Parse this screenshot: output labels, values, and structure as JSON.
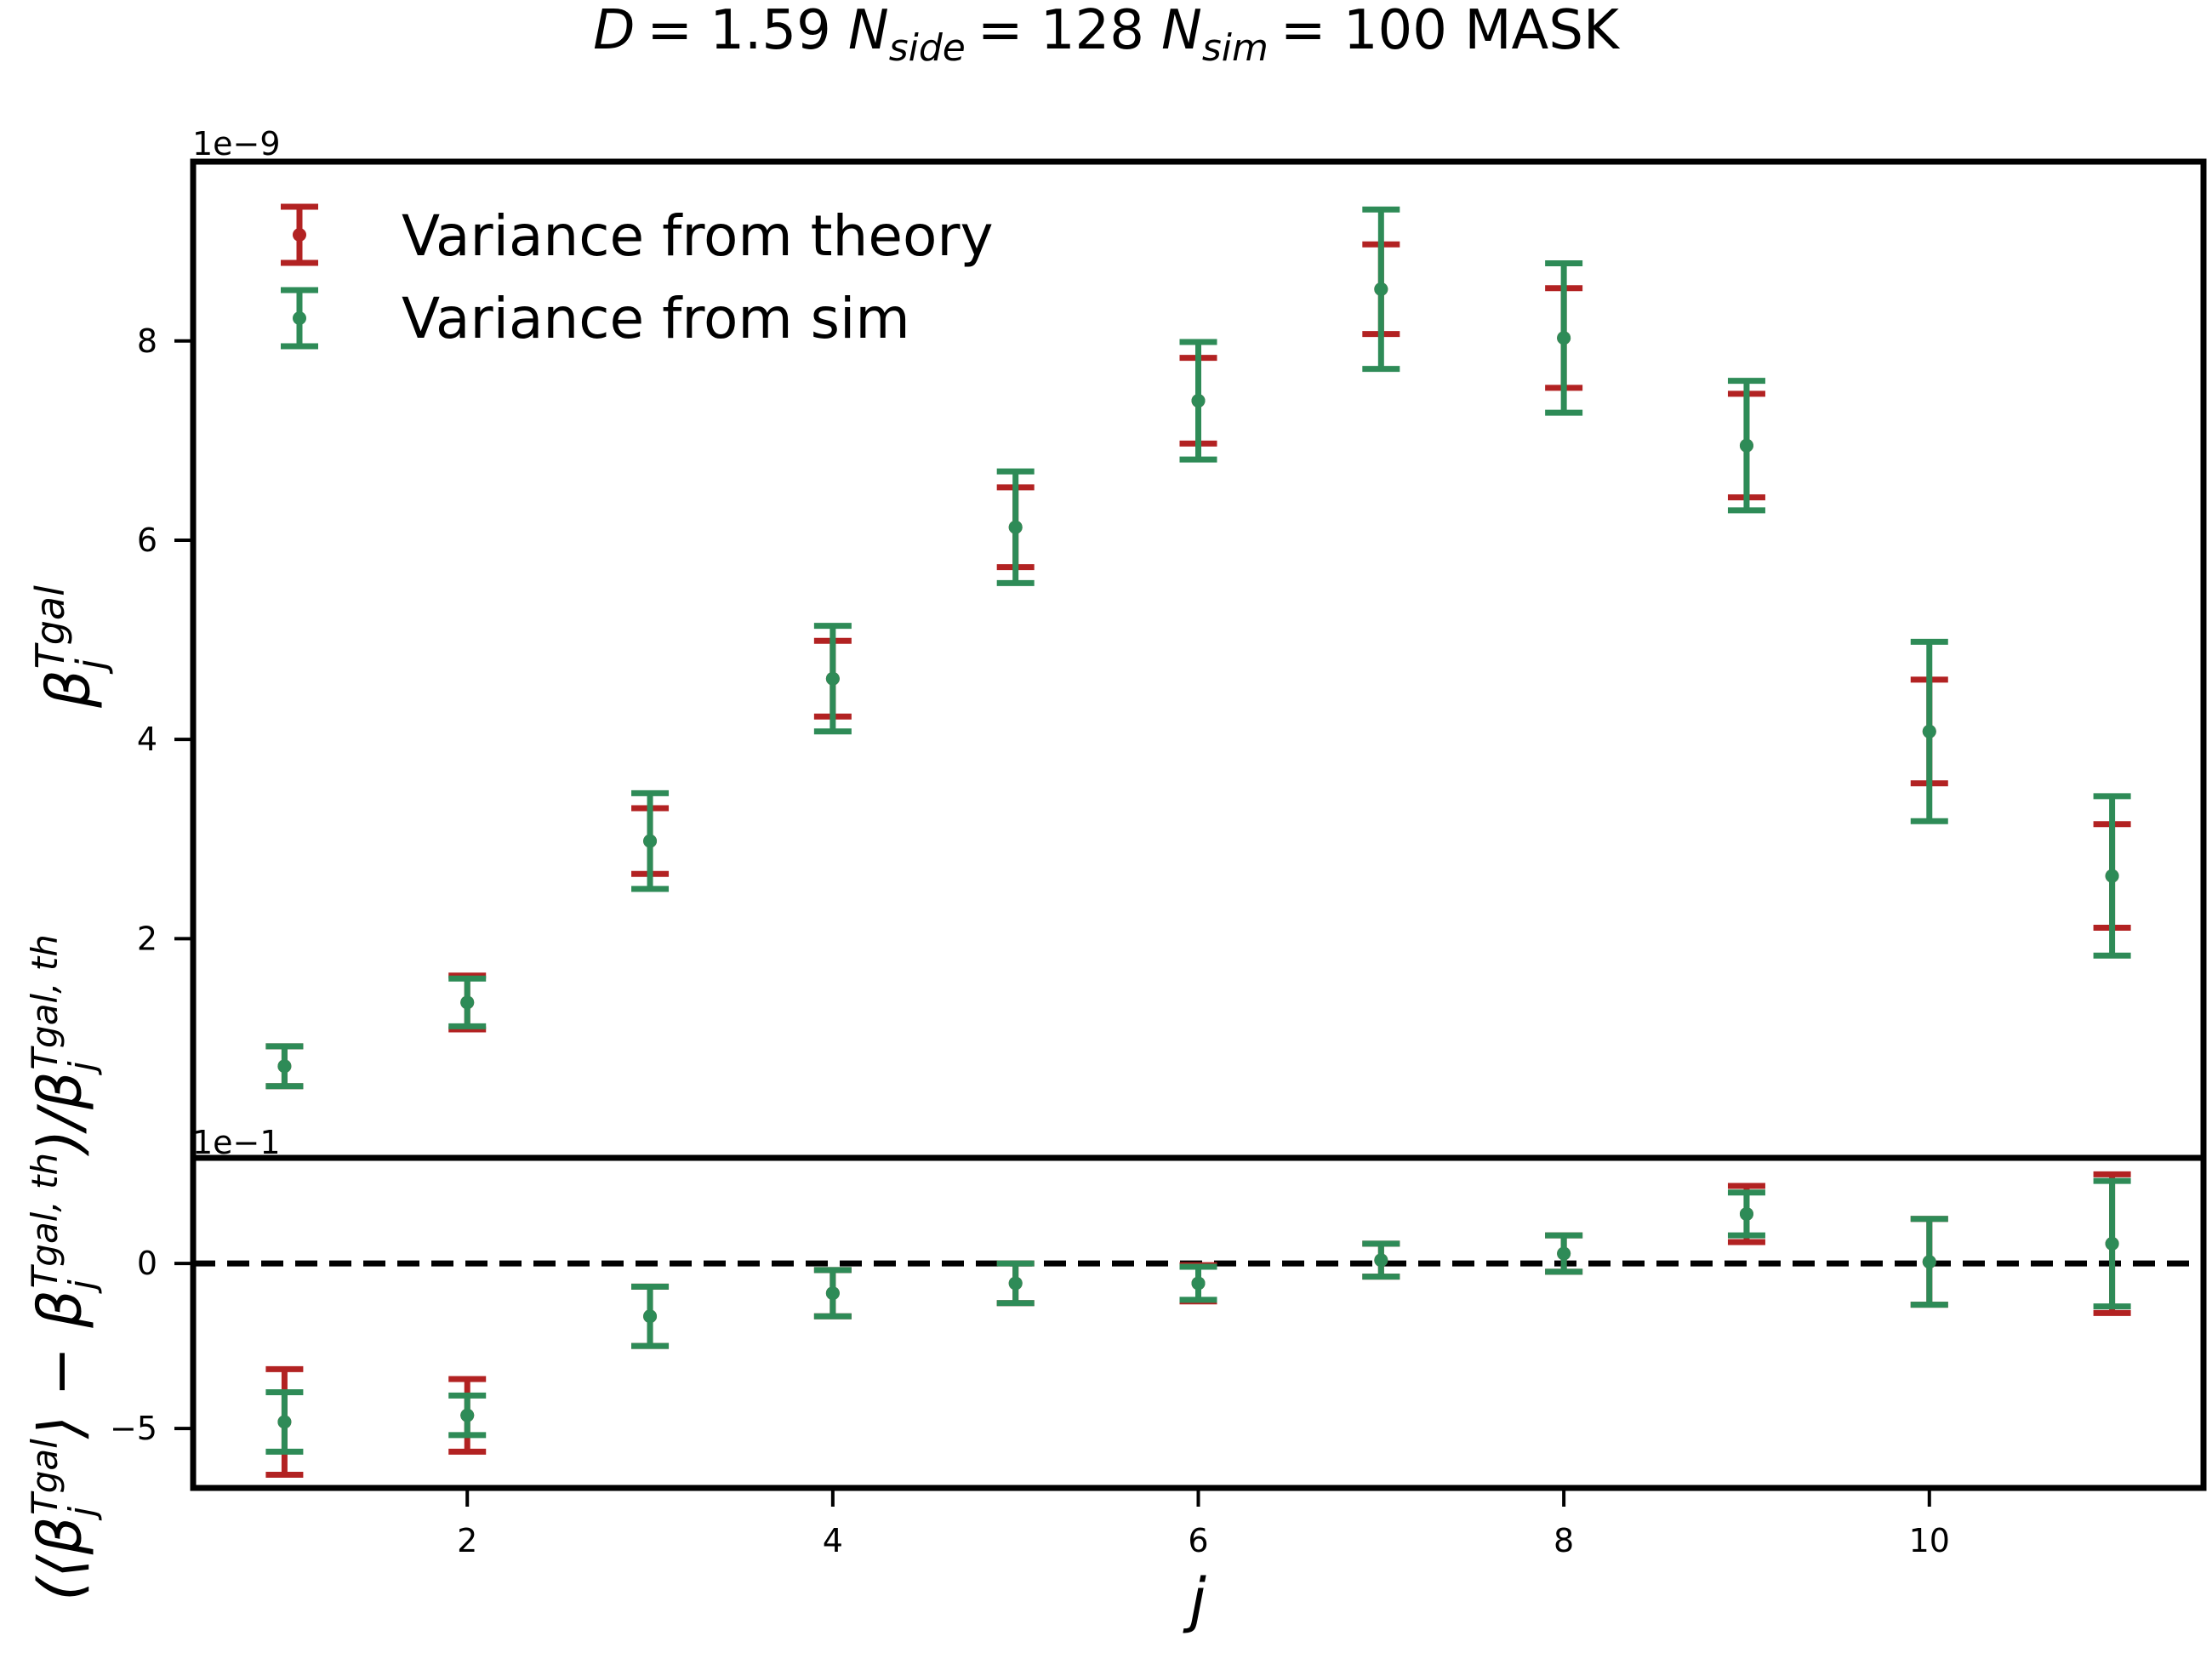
{
  "chart_data": {
    "type": "errorbar",
    "title": "D = 1.59 N_side = 128 N_sim = 100 MASK",
    "title_parts": {
      "D_label": "D",
      "D_value": "= 1.59",
      "nside_label": "N",
      "nside_sub": "side",
      "nside_value": "= 128",
      "nsim_label": "N",
      "nsim_sub": "sim",
      "nsim_value": "= 100 MASK"
    },
    "xlabel": "j",
    "top_ylabel": "β_j^Tgal",
    "bottom_ylabel": "(⟨β_j^Tgal⟩ − β_j^Tgal,th)/β_j^Tgal,th",
    "top_offset_text": "1e−9",
    "bottom_offset_text": "1e−1",
    "xlim": [
      0.5,
      11.5
    ],
    "xticks": [
      2,
      4,
      6,
      8,
      10
    ],
    "top_ylim": [
      -0.2,
      9.8
    ],
    "top_yticks": [
      2,
      4,
      6,
      8
    ],
    "bottom_ylim": [
      -6.8,
      3.2
    ],
    "bottom_yticks": [
      -5,
      0
    ],
    "legend_position": "upper left",
    "colors": {
      "theory": "#b22222",
      "sim": "#2e8b57",
      "frame": "#000000"
    },
    "x": [
      1,
      2,
      3,
      4,
      5,
      6,
      7,
      8,
      9,
      10,
      11
    ],
    "series": [
      {
        "name": "Variance from theory",
        "color": "#b22222",
        "values": [
          0.72,
          1.36,
          2.98,
          4.61,
          6.13,
          7.4,
          8.52,
          8.03,
          6.95,
          4.08,
          2.63
        ],
        "errors": [
          0.2,
          0.27,
          0.33,
          0.38,
          0.4,
          0.43,
          0.45,
          0.5,
          0.52,
          0.52,
          0.52
        ]
      },
      {
        "name": "Variance from sim",
        "color": "#2e8b57",
        "values": [
          0.72,
          1.36,
          2.98,
          4.61,
          6.13,
          7.4,
          8.52,
          8.03,
          6.95,
          4.08,
          2.63
        ],
        "errors": [
          0.2,
          0.24,
          0.48,
          0.53,
          0.56,
          0.59,
          0.8,
          0.75,
          0.65,
          0.9,
          0.8
        ]
      }
    ],
    "residuals": [
      {
        "name": "Variance from theory",
        "color": "#b22222",
        "values": [
          -4.8,
          -4.6,
          -1.6,
          -0.9,
          -0.6,
          -0.6,
          0.1,
          0.3,
          1.5,
          0.05,
          0.6
        ],
        "errors": [
          1.6,
          1.1,
          0.9,
          0.7,
          0.6,
          0.55,
          0.5,
          0.55,
          0.85,
          1.3,
          2.1
        ]
      },
      {
        "name": "Variance from sim",
        "color": "#2e8b57",
        "values": [
          -4.8,
          -4.6,
          -1.6,
          -0.9,
          -0.6,
          -0.6,
          0.1,
          0.3,
          1.5,
          0.05,
          0.6
        ],
        "errors": [
          0.9,
          0.6,
          0.9,
          0.7,
          0.6,
          0.5,
          0.5,
          0.55,
          0.65,
          1.3,
          1.9
        ]
      }
    ]
  }
}
